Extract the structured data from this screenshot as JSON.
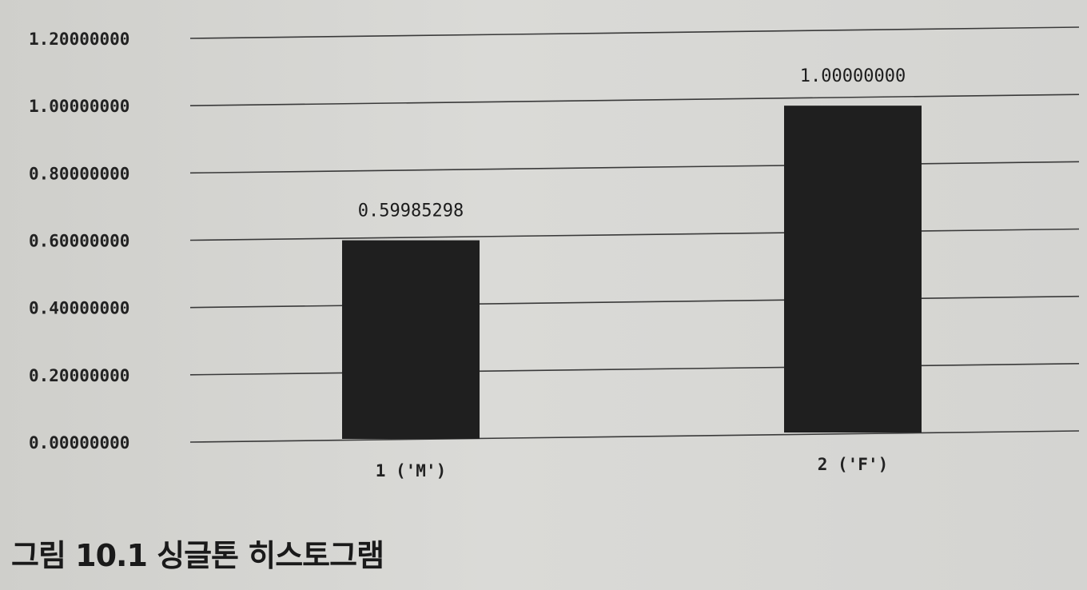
{
  "caption": "그림 10.1 싱글톤 히스토그램",
  "chart_data": {
    "type": "bar",
    "title": "",
    "xlabel": "",
    "ylabel": "",
    "categories": [
      "1 ('M')",
      "2 ('F')"
    ],
    "values": [
      0.59985298,
      1.0
    ],
    "data_labels": [
      "0.59985298",
      "1.00000000"
    ],
    "ylim": [
      0,
      1.2
    ],
    "yticks": [
      0.0,
      0.2,
      0.4,
      0.6,
      0.8,
      1.0,
      1.2
    ],
    "ytick_labels": [
      "0.00000000",
      "0.20000000",
      "0.40000000",
      "0.60000000",
      "0.80000000",
      "1.00000000",
      "1.20000000"
    ],
    "grid": true,
    "legend": "none",
    "bar_color": "#1f1f1f"
  }
}
